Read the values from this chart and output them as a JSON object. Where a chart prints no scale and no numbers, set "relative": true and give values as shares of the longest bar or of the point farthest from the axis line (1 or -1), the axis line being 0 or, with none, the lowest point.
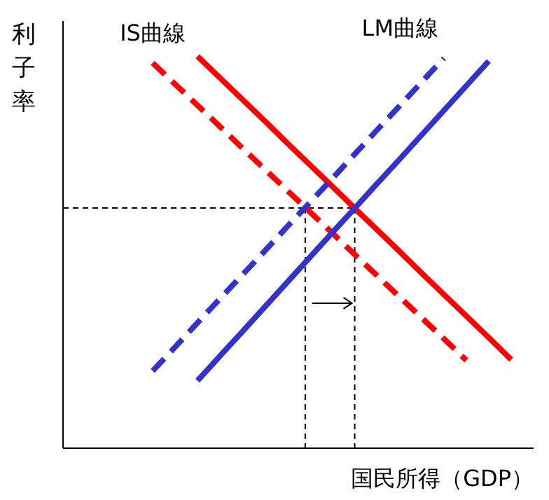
{
  "chart_data": {
    "type": "line",
    "relative": true,
    "xlabel": "国民所得（GDP）",
    "ylabel": "利子率",
    "categories": [
      null,
      null,
      null,
      null,
      null,
      null,
      null,
      null,
      null,
      null,
      null,
      null,
      null,
      null,
      null,
      null,
      null,
      null,
      null,
      null,
      null,
      null
    ],
    "series": [
      {
        "color": "#ff0000",
        "line_style": "solid",
        "values": [
          null,
          null,
          null,
          null,
          null,
          null,
          1.0,
          0.945,
          0.89,
          0.835,
          0.779,
          0.724,
          0.669,
          0.613,
          0.558,
          0.503,
          0.447,
          0.392,
          0.337,
          0.282,
          0.226,
          null
        ]
      },
      {
        "name": "IS曲線",
        "color": "#ff0000",
        "line_style": "dashed",
        "values": [
          null,
          null,
          null,
          null,
          0.983,
          0.929,
          0.875,
          0.821,
          0.766,
          0.712,
          0.658,
          0.604,
          0.55,
          0.495,
          0.441,
          0.387,
          0.333,
          0.279,
          0.224,
          null,
          null,
          null
        ]
      },
      {
        "color": "#3333cc",
        "line_style": "solid",
        "values": [
          null,
          null,
          null,
          null,
          null,
          null,
          0.172,
          0.235,
          0.297,
          0.36,
          0.423,
          0.486,
          0.549,
          0.611,
          0.674,
          0.736,
          0.799,
          0.862,
          0.925,
          0.988,
          null,
          null
        ]
      },
      {
        "name": "LM曲線",
        "color": "#3333cc",
        "line_style": "dashed",
        "values": [
          null,
          null,
          null,
          null,
          0.197,
          0.258,
          0.32,
          0.381,
          0.442,
          0.503,
          0.565,
          0.626,
          0.687,
          0.749,
          0.811,
          0.872,
          0.934,
          0.995,
          null,
          null,
          null,
          null
        ]
      }
    ],
    "ref_lines": [
      {
        "axis": "y",
        "value": 0.613,
        "color": "#000000",
        "line_style": "dashed"
      }
    ]
  }
}
